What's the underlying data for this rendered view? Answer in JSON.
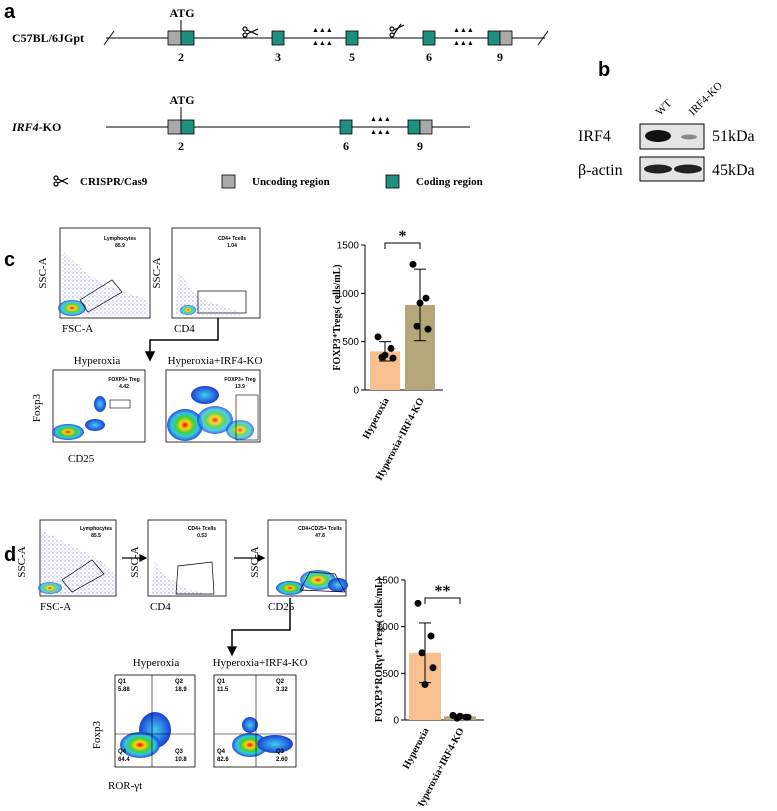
{
  "panel_labels": [
    "a",
    "b",
    "c",
    "d"
  ],
  "gene_diagram": {
    "rows": [
      {
        "label": "C57BL/6JGpt",
        "start_codon": "ATG",
        "exons": [
          "2",
          "3",
          "5",
          "6",
          "9"
        ]
      },
      {
        "label_italic": "IRF4",
        "label_rest": "-KO",
        "start_codon": "ATG",
        "exons": [
          "2",
          "6",
          "9"
        ]
      }
    ],
    "legend": [
      "CRISPR/Cas9",
      "Uncoding region",
      "Coding region"
    ]
  },
  "western_blot": {
    "lanes": [
      "WT",
      "IRF4-KO"
    ],
    "bands": [
      {
        "protein": "IRF4",
        "size": "51kDa"
      },
      {
        "protein": "β-actin",
        "size": "45kDa"
      }
    ]
  },
  "flow_c": {
    "gates": [
      {
        "name": "Lymphocytes",
        "percent": "85.9",
        "x_axis": "FSC-A",
        "y_axis": "SSC-A"
      },
      {
        "name": "CD4+ Tcells",
        "percent": "1.04",
        "x_axis": "CD4",
        "y_axis": "SSC-A"
      }
    ],
    "groups": [
      {
        "title": "Hyperoxia",
        "gate": "FOXP3+ Treg",
        "percent": "4.42"
      },
      {
        "title": "Hyperoxia+IRF4-KO",
        "gate": "FOXP3+ Treg",
        "percent": "13.9"
      }
    ],
    "x_axis": "CD25",
    "y_axis": "Foxp3"
  },
  "flow_d": {
    "gates": [
      {
        "name": "Lymphocytes",
        "percent": "85.5",
        "x_axis": "FSC-A",
        "y_axis": "SSC-A"
      },
      {
        "name": "CD4+ Tcells",
        "percent": "0.53",
        "x_axis": "CD4",
        "y_axis": "SSC-A"
      },
      {
        "name": "CD4+CD25+ Tcells",
        "percent": "47.8",
        "x_axis": "CD25",
        "y_axis": "SSC-A"
      }
    ],
    "groups": [
      {
        "title": "Hyperoxia",
        "quadrants": {
          "Q1": "5.88",
          "Q2": "18.9",
          "Q3": "10.8",
          "Q4": "64.4"
        }
      },
      {
        "title": "Hyperoxia+IRF4-KO",
        "quadrants": {
          "Q1": "11.5",
          "Q2": "3.32",
          "Q3": "2.60",
          "Q4": "82.6"
        }
      }
    ],
    "x_axis": "ROR-γt",
    "y_axis": "Foxp3"
  },
  "chart_data": [
    {
      "type": "bar",
      "ylabel": "FOXP3⁺Tregs( cells/mL)",
      "categories": [
        "Hyperoxia",
        "Hyperoxia+IRF4-KO"
      ],
      "values": [
        400,
        880
      ],
      "errors": [
        100,
        370
      ],
      "points": [
        [
          550,
          430,
          340,
          330,
          360
        ],
        [
          1300,
          950,
          660,
          630,
          900
        ]
      ],
      "colors": [
        "#f9c08f",
        "#b5a77a"
      ],
      "significance": "*",
      "ylim": [
        0,
        1500
      ],
      "yticks": [
        0,
        500,
        1000,
        1500
      ]
    },
    {
      "type": "bar",
      "ylabel": "FOXP3⁺RORγt⁺ Tregs( cells/mL)",
      "categories": [
        "Hyperoxia",
        "Hyperoxia+IRF4-KO"
      ],
      "values": [
        720,
        40
      ],
      "errors": [
        320,
        15
      ],
      "points": [
        [
          1250,
          900,
          720,
          560,
          380
        ],
        [
          50,
          30,
          20,
          30,
          40
        ]
      ],
      "colors": [
        "#f9c08f",
        "#b5a77a"
      ],
      "significance": "**",
      "ylim": [
        0,
        1500
      ],
      "yticks": [
        0,
        500,
        1000,
        1500
      ]
    }
  ]
}
